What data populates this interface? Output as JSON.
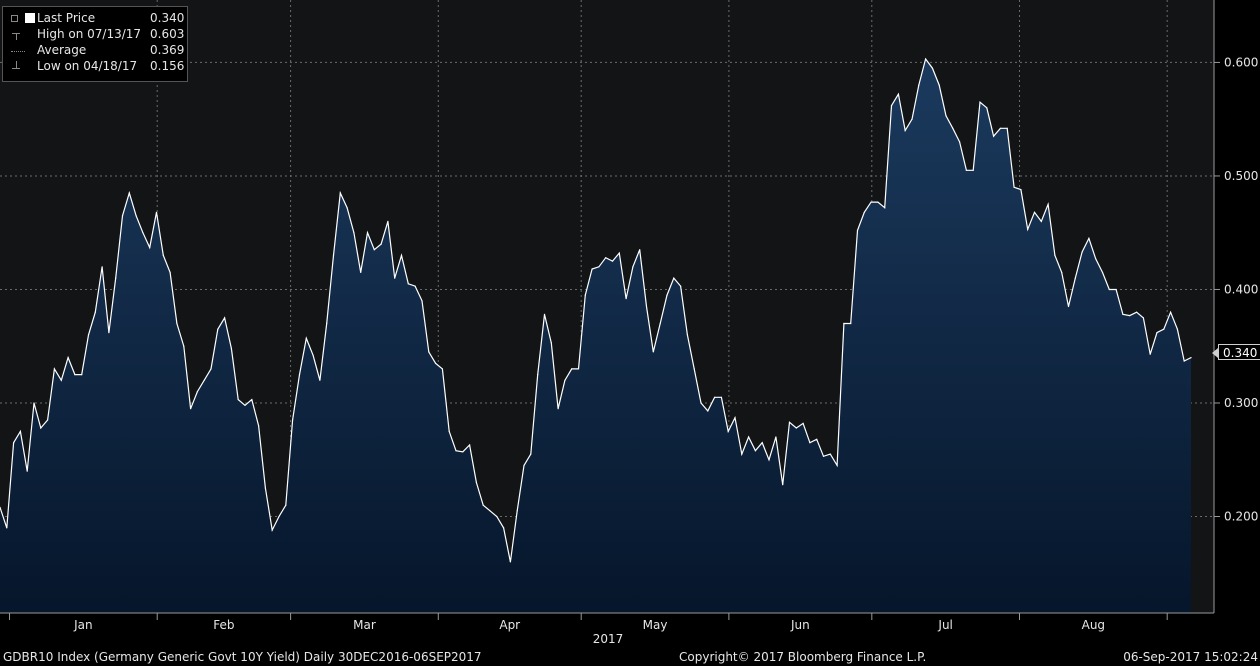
{
  "legend": {
    "last": {
      "label": "Last Price",
      "value": "0.340"
    },
    "high": {
      "label": "High on 07/13/17",
      "value": "0.603"
    },
    "average": {
      "label": "Average",
      "value": "0.369"
    },
    "low": {
      "label": "Low on 04/18/17",
      "value": "0.156"
    }
  },
  "last_tag": "0.340",
  "footer": {
    "left": "GDBR10 Index (Germany Generic Govt 10Y Yield)  Daily 30DEC2016-06SEP2017",
    "center": "Copyright© 2017 Bloomberg Finance L.P.",
    "right": "06-Sep-2017 15:02:24"
  },
  "colors": {
    "line": "#ffffff",
    "fill_top": "#1b3a5e",
    "fill_bottom": "#06162b",
    "grid": "#6b6b6b",
    "plot_bg": "#131416"
  },
  "chart_data": {
    "type": "area",
    "x_start": "2016-12-30",
    "x_end": "2017-09-06",
    "year_label": "2017",
    "months": [
      {
        "label": "Jan",
        "start": "2017-01-01"
      },
      {
        "label": "Feb",
        "start": "2017-02-01"
      },
      {
        "label": "Mar",
        "start": "2017-03-01"
      },
      {
        "label": "Apr",
        "start": "2017-04-01"
      },
      {
        "label": "May",
        "start": "2017-05-01"
      },
      {
        "label": "Jun",
        "start": "2017-06-01"
      },
      {
        "label": "Jul",
        "start": "2017-07-01"
      },
      {
        "label": "Aug",
        "start": "2017-08-01"
      }
    ],
    "y_ticks": [
      0.2,
      0.3,
      0.4,
      0.5,
      0.6
    ],
    "y_tick_labels": [
      "0.200",
      "0.300",
      "0.400",
      "0.500",
      "0.600"
    ],
    "ylim": [
      0.115,
      0.655
    ],
    "grid": true,
    "legend_position": "top-left",
    "series": [
      {
        "values": [
          0.208,
          0.19,
          0.265,
          0.275,
          0.24,
          0.3,
          0.278,
          0.285,
          0.33,
          0.32,
          0.34,
          0.325,
          0.325,
          0.36,
          0.38,
          0.42,
          0.362,
          0.41,
          0.465,
          0.485,
          0.465,
          0.45,
          0.437,
          0.468,
          0.43,
          0.415,
          0.37,
          0.35,
          0.295,
          0.31,
          0.32,
          0.33,
          0.365,
          0.375,
          0.348,
          0.303,
          0.298,
          0.303,
          0.28,
          0.225,
          0.188,
          0.2,
          0.21,
          0.285,
          0.325,
          0.357,
          0.342,
          0.32,
          0.37,
          0.43,
          0.485,
          0.472,
          0.45,
          0.415,
          0.45,
          0.435,
          0.44,
          0.46,
          0.41,
          0.43,
          0.405,
          0.403,
          0.39,
          0.345,
          0.335,
          0.33,
          0.275,
          0.258,
          0.257,
          0.263,
          0.23,
          0.21,
          0.205,
          0.2,
          0.19,
          0.16,
          0.205,
          0.245,
          0.255,
          0.325,
          0.378,
          0.353,
          0.295,
          0.32,
          0.33,
          0.33,
          0.395,
          0.418,
          0.42,
          0.428,
          0.425,
          0.432,
          0.392,
          0.42,
          0.435,
          0.385,
          0.345,
          0.37,
          0.395,
          0.41,
          0.403,
          0.36,
          0.33,
          0.3,
          0.293,
          0.305,
          0.305,
          0.275,
          0.287,
          0.255,
          0.27,
          0.258,
          0.265,
          0.25,
          0.27,
          0.228,
          0.283,
          0.278,
          0.282,
          0.265,
          0.268,
          0.253,
          0.255,
          0.245,
          0.37,
          0.37,
          0.452,
          0.468,
          0.477,
          0.477,
          0.472,
          0.562,
          0.572,
          0.54,
          0.55,
          0.58,
          0.603,
          0.595,
          0.58,
          0.553,
          0.542,
          0.53,
          0.505,
          0.505,
          0.565,
          0.56,
          0.535,
          0.542,
          0.542,
          0.49,
          0.488,
          0.453,
          0.468,
          0.46,
          0.475,
          0.43,
          0.415,
          0.385,
          0.41,
          0.433,
          0.445,
          0.427,
          0.415,
          0.4,
          0.4,
          0.378,
          0.377,
          0.38,
          0.375,
          0.343,
          0.362,
          0.365,
          0.38,
          0.365,
          0.337,
          0.34
        ]
      }
    ]
  }
}
